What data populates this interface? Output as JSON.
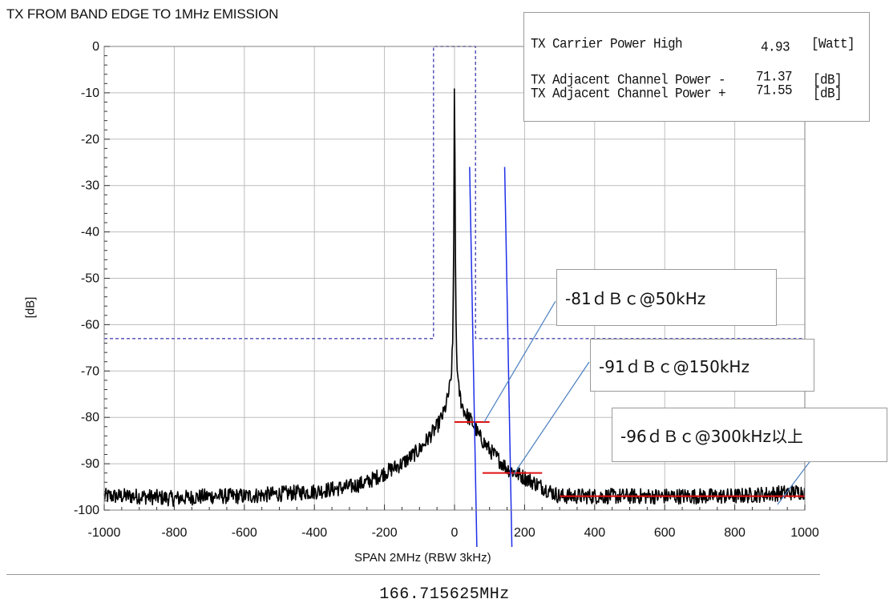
{
  "title": "TX FROM BAND EDGE TO 1MHz EMISSION",
  "info": {
    "carrier_label": "TX Carrier Power High",
    "carrier_value": "4.93",
    "carrier_unit": "[Watt]",
    "adj_minus_label": "TX Adjacent Channel Power -",
    "adj_minus_value": "71.37",
    "adj_minus_unit": "[dB]",
    "adj_plus_label": "TX Adjacent Channel Power +",
    "adj_plus_value": "71.55",
    "adj_plus_unit": "[dB]"
  },
  "annotations": [
    {
      "text": "-81ｄＢｃ@50kHz"
    },
    {
      "text": "-91ｄＢｃ@150kHz"
    },
    {
      "text": "-96ｄＢｃ@300kHz以上"
    }
  ],
  "frequency_label": "166.715625MHz",
  "colors": {
    "trace": "#000000",
    "mask": "#4a4ab4",
    "red_level": "#e01010",
    "blue_marker": "#1f2fe8",
    "leader": "#4a7fc0",
    "grid": "#bdbdbd"
  },
  "chart_data": {
    "type": "line",
    "xlabel": "SPAN 2MHz (RBW 3kHz)",
    "ylabel": "[dB]",
    "xlim": [
      -1000,
      1000
    ],
    "ylim": [
      -100,
      0
    ],
    "x_ticks": [
      -1000,
      -800,
      -600,
      -400,
      -200,
      0,
      200,
      400,
      600,
      800,
      1000
    ],
    "y_ticks": [
      0,
      -10,
      -20,
      -30,
      -40,
      -50,
      -60,
      -70,
      -80,
      -90,
      -100
    ],
    "y_tick_labels": [
      "0",
      "-10",
      "-20",
      "-30",
      "-40",
      "-50",
      "-60",
      "-70",
      "-80",
      "-90",
      "-100"
    ],
    "grid": true,
    "series": [
      {
        "x": [
          -1000,
          -900,
          -800,
          -700,
          -600,
          -500,
          -400,
          -300,
          -250,
          -200,
          -150,
          -100,
          -70,
          -50,
          -30,
          -20,
          -10,
          -5,
          -2,
          0,
          2,
          5,
          10,
          20,
          30,
          50,
          70,
          100,
          150,
          200,
          250,
          300,
          400,
          500,
          600,
          700,
          800,
          900,
          1000
        ],
        "y": [
          -97,
          -97,
          -97.5,
          -97,
          -97,
          -96.5,
          -96,
          -95,
          -94,
          -92,
          -90,
          -87,
          -84,
          -82,
          -79,
          -76,
          -72,
          -64,
          -40,
          0,
          -40,
          -64,
          -73,
          -77,
          -79,
          -81,
          -84,
          -87,
          -91,
          -93,
          -95,
          -97,
          -97,
          -97,
          -97,
          -97,
          -97,
          -96.5,
          -96
        ]
      }
    ],
    "mask": {
      "x": [
        -1000,
        -60,
        -60,
        60,
        60,
        1000
      ],
      "y": [
        -63,
        -63,
        0,
        0,
        -63,
        -63
      ]
    },
    "level_marks": [
      {
        "x1": 0,
        "x2": 100,
        "y": -81
      },
      {
        "x1": 80,
        "x2": 250,
        "y": -92
      },
      {
        "x1": 300,
        "x2": 1000,
        "y": -97
      }
    ],
    "markers": [
      {
        "x": 50,
        "y_top": -26
      },
      {
        "x": 150,
        "y_top": -26
      }
    ]
  }
}
